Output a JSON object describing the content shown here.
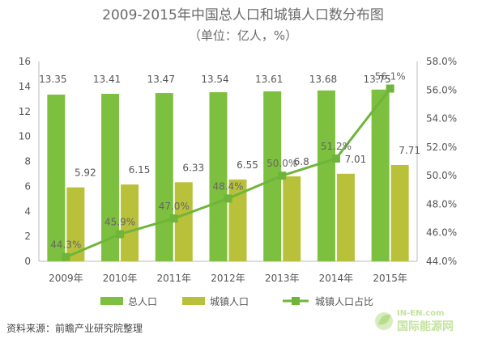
{
  "chart_data": {
    "type": "bar",
    "title": "2009-2015年中国总人口和城镇人口数分布图",
    "subtitle": "（单位：亿人，%）",
    "categories": [
      "2009年",
      "2010年",
      "2011年",
      "2012年",
      "2013年",
      "2014年",
      "2015年"
    ],
    "series": [
      {
        "name": "总人口",
        "type": "bar",
        "axis": "left",
        "color": "#7dbf3e",
        "values": [
          13.35,
          13.41,
          13.47,
          13.54,
          13.61,
          13.68,
          13.75
        ],
        "labels": [
          "13.35",
          "13.41",
          "13.47",
          "13.54",
          "13.61",
          "13.68",
          "13.75"
        ]
      },
      {
        "name": "城镇人口",
        "type": "bar",
        "axis": "left",
        "color": "#b8c139",
        "values": [
          5.92,
          6.15,
          6.33,
          6.55,
          6.8,
          7.01,
          7.71
        ],
        "labels": [
          "5.92",
          "6.15",
          "6.33",
          "6.55",
          "6.8",
          "7.01",
          "7.71"
        ]
      },
      {
        "name": "城镇人口占比",
        "type": "line",
        "axis": "right",
        "color": "#6fb53a",
        "values": [
          44.3,
          45.9,
          47.0,
          48.4,
          50.0,
          51.2,
          56.1
        ],
        "labels": [
          "44.3%",
          "45.9%",
          "47.0%",
          "48.4%",
          "50.0%",
          "51.2%",
          "56.1%"
        ]
      }
    ],
    "y_left": {
      "min": 0,
      "max": 16,
      "ticks": [
        "0",
        "2",
        "4",
        "6",
        "8",
        "10",
        "12",
        "14",
        "16"
      ]
    },
    "y_right": {
      "min": 44,
      "max": 58,
      "ticks": [
        "44.0%",
        "46.0%",
        "48.0%",
        "50.0%",
        "52.0%",
        "54.0%",
        "56.0%",
        "58.0%"
      ]
    },
    "grid": false,
    "legend_position": "bottom"
  },
  "source": "资料来源：前瞻产业研究院整理",
  "watermark": {
    "line1": "IN-EN.com",
    "line2": "国际能源网"
  }
}
